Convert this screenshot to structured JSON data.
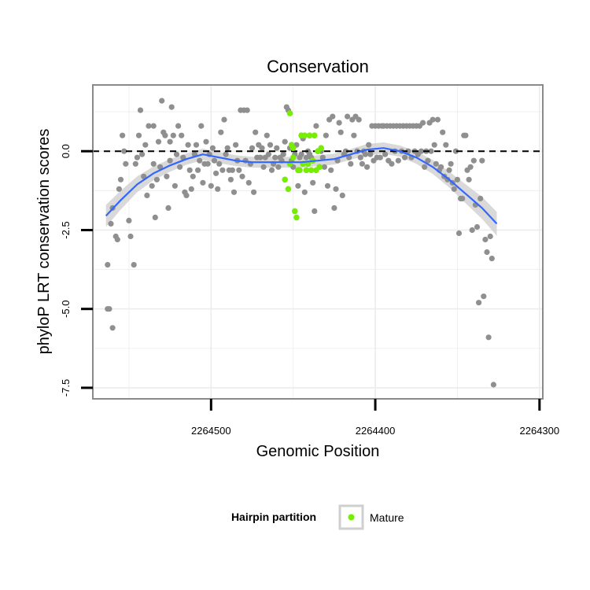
{
  "chart_data": {
    "type": "scatter",
    "title": "Conservation",
    "xlabel": "Genomic Position",
    "ylabel": "phyloP LRT conservation scores",
    "x_reversed": true,
    "xlim": [
      2264572,
      2264298
    ],
    "ylim": [
      -7.85,
      2.1
    ],
    "x_ticks": [
      {
        "value": 2264500,
        "label": "2264500"
      },
      {
        "value": 2264400,
        "label": "2264400"
      },
      {
        "value": 2264300,
        "label": "2264300"
      }
    ],
    "y_ticks": [
      {
        "value": 0,
        "label": "0.0"
      },
      {
        "value": -2.5,
        "label": "-2.5"
      },
      {
        "value": -5,
        "label": "-5.0"
      },
      {
        "value": -7.5,
        "label": "-7.5"
      }
    ],
    "reference_line": {
      "y": 0,
      "style": "dashed",
      "color": "#000000"
    },
    "grid": true,
    "colors": {
      "background_points": "#8f8f8f",
      "mature": "#76ee00",
      "smooth": "#3366ff",
      "band": "#cccccc"
    },
    "series": [
      {
        "role": "background",
        "points": [
          [
            2264563,
            -3.6
          ],
          [
            2264563,
            -5.0
          ],
          [
            2264562,
            -5.0
          ],
          [
            2264560,
            -5.6
          ],
          [
            2264561,
            -2.3
          ],
          [
            2264560,
            -1.8
          ],
          [
            2264558,
            -2.7
          ],
          [
            2264557,
            -2.8
          ],
          [
            2264556,
            -1.2
          ],
          [
            2264555,
            -0.9
          ],
          [
            2264554,
            0.5
          ],
          [
            2264553,
            0.0
          ],
          [
            2264552,
            -0.4
          ],
          [
            2264550,
            -2.2
          ],
          [
            2264549,
            -2.7
          ],
          [
            2264547,
            -3.6
          ],
          [
            2264546,
            -0.4
          ],
          [
            2264545,
            -0.2
          ],
          [
            2264544,
            0.5
          ],
          [
            2264543,
            1.3
          ],
          [
            2264542,
            -0.1
          ],
          [
            2264541,
            -0.8
          ],
          [
            2264540,
            0.2
          ],
          [
            2264539,
            -1.4
          ],
          [
            2264538,
            0.8
          ],
          [
            2264536,
            -1.1
          ],
          [
            2264535,
            -0.4
          ],
          [
            2264535,
            0.8
          ],
          [
            2264534,
            -2.1
          ],
          [
            2264533,
            -0.9
          ],
          [
            2264532,
            0.3
          ],
          [
            2264531,
            -0.5
          ],
          [
            2264530,
            1.6
          ],
          [
            2264529,
            0.6
          ],
          [
            2264528,
            0.5
          ],
          [
            2264527,
            -0.8
          ],
          [
            2264526,
            -1.8
          ],
          [
            2264525,
            -0.3
          ],
          [
            2264525,
            0.3
          ],
          [
            2264524,
            1.4
          ],
          [
            2264523,
            0.5
          ],
          [
            2264522,
            -1.1
          ],
          [
            2264521,
            -0.1
          ],
          [
            2264520,
            0.8
          ],
          [
            2264519,
            -0.5
          ],
          [
            2264518,
            0.5
          ],
          [
            2264517,
            -0.2
          ],
          [
            2264516,
            -1.3
          ],
          [
            2264515,
            -1.4
          ],
          [
            2264514,
            0.2
          ],
          [
            2264513,
            -0.6
          ],
          [
            2264512,
            -1.2
          ],
          [
            2264511,
            -0.8
          ],
          [
            2264510,
            -0.1
          ],
          [
            2264509,
            0.2
          ],
          [
            2264508,
            -0.6
          ],
          [
            2264507,
            -0.3
          ],
          [
            2264506,
            0.8
          ],
          [
            2264505,
            -1.0
          ],
          [
            2264504,
            -0.4
          ],
          [
            2264503,
            0.3
          ],
          [
            2264502,
            -0.4
          ],
          [
            2264501,
            -0.1
          ],
          [
            2264500,
            -1.1
          ],
          [
            2264499,
            0.1
          ],
          [
            2264498,
            -0.3
          ],
          [
            2264497,
            -0.7
          ],
          [
            2264496,
            -1.2
          ],
          [
            2264495,
            -0.4
          ],
          [
            2264494,
            0.6
          ],
          [
            2264493,
            -0.6
          ],
          [
            2264492,
            1.0
          ],
          [
            2264491,
            -0.1
          ],
          [
            2264490,
            0.1
          ],
          [
            2264489,
            -0.6
          ],
          [
            2264488,
            -0.9
          ],
          [
            2264487,
            -0.6
          ],
          [
            2264486,
            -1.3
          ],
          [
            2264485,
            0.2
          ],
          [
            2264484,
            -0.3
          ],
          [
            2264483,
            -0.6
          ],
          [
            2264482,
            1.3
          ],
          [
            2264481,
            -0.8
          ],
          [
            2264480,
            1.3
          ],
          [
            2264479,
            -0.3
          ],
          [
            2264478,
            1.3
          ],
          [
            2264477,
            -1.0
          ],
          [
            2264476,
            -0.4
          ],
          [
            2264475,
            0.1
          ],
          [
            2264474,
            -1.3
          ],
          [
            2264473,
            0.6
          ],
          [
            2264472,
            -0.2
          ],
          [
            2264471,
            0.2
          ],
          [
            2264470,
            -0.2
          ],
          [
            2264469,
            0.1
          ],
          [
            2264468,
            -0.5
          ],
          [
            2264467,
            -0.2
          ],
          [
            2264466,
            0.5
          ],
          [
            2264465,
            -0.1
          ],
          [
            2264464,
            0.2
          ],
          [
            2264463,
            -0.6
          ],
          [
            2264462,
            -0.4
          ],
          [
            2264461,
            -0.2
          ],
          [
            2264460,
            0.1
          ],
          [
            2264459,
            -0.5
          ],
          [
            2264458,
            -0.2
          ],
          [
            2264457,
            -0.3
          ],
          [
            2264456,
            -0.1
          ],
          [
            2264455,
            0.3
          ],
          [
            2264454,
            1.4
          ],
          [
            2264453,
            1.3
          ],
          [
            2264452,
            0.1
          ],
          [
            2264451,
            -0.3
          ],
          [
            2264450,
            -0.5
          ],
          [
            2264449,
            -0.1
          ],
          [
            2264448,
            0.2
          ],
          [
            2264447,
            -1.1
          ],
          [
            2264446,
            -0.2
          ],
          [
            2264445,
            -0.1
          ],
          [
            2264444,
            0.4
          ],
          [
            2264443,
            -1.3
          ],
          [
            2264442,
            -0.2
          ],
          [
            2264441,
            0.0
          ],
          [
            2264440,
            -0.1
          ],
          [
            2264439,
            -0.2
          ],
          [
            2264438,
            -1.0
          ],
          [
            2264437,
            -1.9
          ],
          [
            2264436,
            0.8
          ],
          [
            2264435,
            0.0
          ],
          [
            2264434,
            -0.5
          ],
          [
            2264433,
            0.0
          ],
          [
            2264432,
            -0.2
          ],
          [
            2264431,
            -0.5
          ],
          [
            2264430,
            0.5
          ],
          [
            2264429,
            -1.1
          ],
          [
            2264428,
            1.0
          ],
          [
            2264427,
            -0.6
          ],
          [
            2264426,
            1.1
          ],
          [
            2264425,
            -1.8
          ],
          [
            2264424,
            -1.2
          ],
          [
            2264423,
            -0.3
          ],
          [
            2264422,
            0.9
          ],
          [
            2264421,
            0.6
          ],
          [
            2264420,
            -1.4
          ],
          [
            2264419,
            -0.1
          ],
          [
            2264418,
            0.0
          ],
          [
            2264417,
            1.1
          ],
          [
            2264416,
            -0.2
          ],
          [
            2264415,
            -0.4
          ],
          [
            2264414,
            1.0
          ],
          [
            2264413,
            0.5
          ],
          [
            2264412,
            1.1
          ],
          [
            2264411,
            0.0
          ],
          [
            2264410,
            1.0
          ],
          [
            2264409,
            -0.2
          ],
          [
            2264408,
            -0.4
          ],
          [
            2264407,
            0.0
          ],
          [
            2264406,
            -0.1
          ],
          [
            2264405,
            -0.5
          ],
          [
            2264404,
            0.2
          ],
          [
            2264403,
            -0.1
          ],
          [
            2264402,
            0.8
          ],
          [
            2264401,
            -0.3
          ],
          [
            2264400,
            0.8
          ],
          [
            2264399,
            -0.2
          ],
          [
            2264398,
            0.8
          ],
          [
            2264397,
            -0.2
          ],
          [
            2264396,
            0.8
          ],
          [
            2264395,
            0.8
          ],
          [
            2264394,
            -0.1
          ],
          [
            2264393,
            0.8
          ],
          [
            2264392,
            -0.3
          ],
          [
            2264391,
            0.8
          ],
          [
            2264390,
            -0.4
          ],
          [
            2264389,
            0.8
          ],
          [
            2264388,
            0.0
          ],
          [
            2264387,
            0.8
          ],
          [
            2264386,
            -0.3
          ],
          [
            2264385,
            0.8
          ],
          [
            2264384,
            0.0
          ],
          [
            2264383,
            0.8
          ],
          [
            2264382,
            -0.2
          ],
          [
            2264381,
            0.8
          ],
          [
            2264380,
            0.0
          ],
          [
            2264379,
            0.8
          ],
          [
            2264378,
            -0.2
          ],
          [
            2264377,
            0.8
          ],
          [
            2264376,
            0.0
          ],
          [
            2264375,
            0.8
          ],
          [
            2264374,
            -0.1
          ],
          [
            2264373,
            0.8
          ],
          [
            2264372,
            0.0
          ],
          [
            2264371,
            0.9
          ],
          [
            2264370,
            -0.5
          ],
          [
            2264369,
            0.0
          ],
          [
            2264368,
            -0.3
          ],
          [
            2264367,
            0.9
          ],
          [
            2264366,
            0.0
          ],
          [
            2264365,
            1.0
          ],
          [
            2264364,
            0.2
          ],
          [
            2264363,
            -0.4
          ],
          [
            2264362,
            1.0
          ],
          [
            2264361,
            -0.6
          ],
          [
            2264360,
            -0.5
          ],
          [
            2264359,
            0.6
          ],
          [
            2264358,
            -0.8
          ],
          [
            2264357,
            0.2
          ],
          [
            2264356,
            -0.9
          ],
          [
            2264355,
            -0.6
          ],
          [
            2264354,
            -0.4
          ],
          [
            2264353,
            -1.0
          ],
          [
            2264352,
            -1.2
          ],
          [
            2264351,
            0.0
          ],
          [
            2264350,
            -0.9
          ],
          [
            2264349,
            -2.6
          ],
          [
            2264348,
            -1.5
          ],
          [
            2264347,
            -1.5
          ],
          [
            2264346,
            0.5
          ],
          [
            2264345,
            0.5
          ],
          [
            2264344,
            -0.6
          ],
          [
            2264343,
            -0.9
          ],
          [
            2264342,
            -0.5
          ],
          [
            2264341,
            -2.5
          ],
          [
            2264340,
            -0.3
          ],
          [
            2264339,
            -1.7
          ],
          [
            2264338,
            -2.4
          ],
          [
            2264337,
            -4.8
          ],
          [
            2264336,
            -1.5
          ],
          [
            2264335,
            -0.3
          ],
          [
            2264334,
            -4.6
          ],
          [
            2264333,
            -2.8
          ],
          [
            2264332,
            -3.2
          ],
          [
            2264331,
            -5.9
          ],
          [
            2264330,
            -2.7
          ],
          [
            2264329,
            -3.4
          ],
          [
            2264328,
            -7.4
          ]
        ]
      },
      {
        "role": "mature",
        "name": "Mature",
        "points": [
          [
            2264452,
            1.2
          ],
          [
            2264451,
            0.2
          ],
          [
            2264450,
            0.1
          ],
          [
            2264449,
            -1.9
          ],
          [
            2264448,
            -2.1
          ],
          [
            2264447,
            -0.6
          ],
          [
            2264446,
            -0.6
          ],
          [
            2264445,
            0.5
          ],
          [
            2264444,
            -0.4
          ],
          [
            2264443,
            0.5
          ],
          [
            2264442,
            -0.6
          ],
          [
            2264441,
            -0.4
          ],
          [
            2264440,
            0.5
          ],
          [
            2264439,
            -0.6
          ],
          [
            2264438,
            -0.3
          ],
          [
            2264437,
            0.5
          ],
          [
            2264436,
            -0.6
          ],
          [
            2264435,
            0.0
          ],
          [
            2264434,
            -0.5
          ],
          [
            2264433,
            0.1
          ],
          [
            2264455,
            -0.9
          ],
          [
            2264453,
            -1.2
          ],
          [
            2264452,
            -0.4
          ],
          [
            2264450,
            -0.2
          ]
        ]
      }
    ],
    "smooth": {
      "color": "#3366ff",
      "x": [
        2264564,
        2264555,
        2264545,
        2264535,
        2264525,
        2264515,
        2264505,
        2264495,
        2264485,
        2264475,
        2264465,
        2264455,
        2264445,
        2264435,
        2264425,
        2264415,
        2264405,
        2264395,
        2264385,
        2264375,
        2264365,
        2264355,
        2264345,
        2264335,
        2264326
      ],
      "y": [
        -2.05,
        -1.55,
        -1.05,
        -0.7,
        -0.45,
        -0.25,
        -0.1,
        -0.2,
        -0.3,
        -0.35,
        -0.35,
        -0.35,
        -0.35,
        -0.3,
        -0.25,
        -0.1,
        0.05,
        0.1,
        0.0,
        -0.2,
        -0.5,
        -0.9,
        -1.35,
        -1.8,
        -2.3
      ],
      "band_halfwidth": [
        0.35,
        0.3,
        0.25,
        0.22,
        0.2,
        0.18,
        0.18,
        0.18,
        0.17,
        0.17,
        0.17,
        0.17,
        0.17,
        0.17,
        0.17,
        0.17,
        0.18,
        0.18,
        0.18,
        0.2,
        0.22,
        0.25,
        0.3,
        0.35,
        0.38
      ]
    },
    "legend": {
      "placement": "bottom",
      "title": "Hairpin partition",
      "items": [
        {
          "label": "Mature",
          "color": "#76ee00"
        }
      ]
    }
  }
}
